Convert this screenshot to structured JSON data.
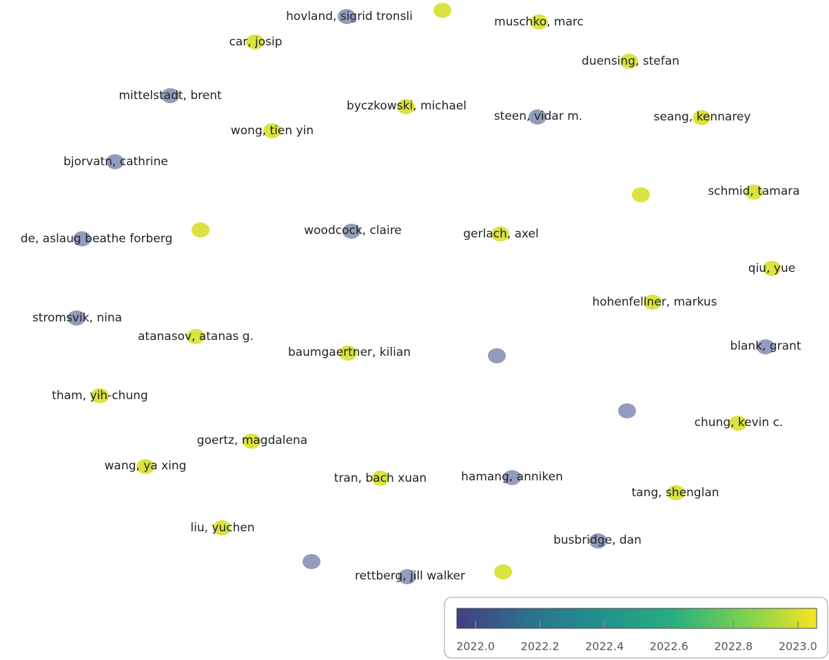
{
  "nodes": [
    {
      "label": "hovland, sigrid tronsli",
      "year": 2022
    },
    {
      "label": null,
      "year": 2023
    },
    {
      "label": "muschko, marc",
      "year": 2023
    },
    {
      "label": "car, josip",
      "year": 2023
    },
    {
      "label": "duensing, stefan",
      "year": 2023
    },
    {
      "label": "mittelstadt, brent",
      "year": 2022
    },
    {
      "label": "byczkowski, michael",
      "year": 2023
    },
    {
      "label": "steen, vidar m.",
      "year": 2022
    },
    {
      "label": "seang, kennarey",
      "year": 2023
    },
    {
      "label": "wong, tien yin",
      "year": 2023
    },
    {
      "label": "bjorvatn, cathrine",
      "year": 2022
    },
    {
      "label": null,
      "year": 2023
    },
    {
      "label": "schmid, tamara",
      "year": 2023
    },
    {
      "label": null,
      "year": 2023
    },
    {
      "label": "woodcock, claire",
      "year": 2022
    },
    {
      "label": "de, aslaug beathe forberg",
      "year": 2022
    },
    {
      "label": "gerlach, axel",
      "year": 2023
    },
    {
      "label": "qiu, yue",
      "year": 2023
    },
    {
      "label": "hohenfellner, markus",
      "year": 2023
    },
    {
      "label": "stromsvik, nina",
      "year": 2022
    },
    {
      "label": "atanasov, atanas g.",
      "year": 2023
    },
    {
      "label": "baumgaertner, kilian",
      "year": 2023
    },
    {
      "label": null,
      "year": 2022
    },
    {
      "label": "blank, grant",
      "year": 2022
    },
    {
      "label": "tham, yih-chung",
      "year": 2023
    },
    {
      "label": null,
      "year": 2022
    },
    {
      "label": "chung, kevin c.",
      "year": 2023
    },
    {
      "label": "goertz, magdalena",
      "year": 2023
    },
    {
      "label": "wang, ya xing",
      "year": 2023
    },
    {
      "label": "tran, bach xuan",
      "year": 2023
    },
    {
      "label": "hamang, anniken",
      "year": 2022
    },
    {
      "label": "tang, shenglan",
      "year": 2023
    },
    {
      "label": "liu, yuchen",
      "year": 2023
    },
    {
      "label": "busbridge, dan",
      "year": 2022
    },
    {
      "label": null,
      "year": 2022
    },
    {
      "label": null,
      "year": 2023
    },
    {
      "label": "rettberg, jill walker",
      "year": 2022
    }
  ],
  "colorbar": {
    "lim": [
      2021.942,
      2023.058
    ],
    "ticks": [
      {
        "value": 2022,
        "label": "2022.0"
      },
      {
        "value": 2022.2,
        "label": "2022.2"
      },
      {
        "value": 2022.4,
        "label": "2022.4"
      },
      {
        "value": 2022.6,
        "label": "2022.6"
      },
      {
        "value": 2022.8,
        "label": "2022.8"
      },
      {
        "value": 2023,
        "label": "2023.0"
      }
    ],
    "colors": [
      "#433e85",
      "#2c728e",
      "#21918c",
      "#28ae80",
      "#7ad151",
      "#f7e51f"
    ]
  }
}
